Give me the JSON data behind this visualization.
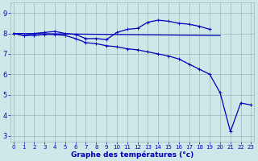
{
  "x_all": [
    0,
    1,
    2,
    3,
    4,
    5,
    6,
    7,
    8,
    9,
    10,
    11,
    12,
    13,
    14,
    15,
    16,
    17,
    18,
    19,
    20,
    21,
    22,
    23
  ],
  "line_upper": [
    8.0,
    7.9,
    8.0,
    8.05,
    8.1,
    8.0,
    7.95,
    7.75,
    7.75,
    7.7,
    8.05,
    8.2,
    8.25,
    8.55,
    8.65,
    8.6,
    8.5,
    8.45,
    8.35,
    8.2,
    null,
    null,
    null,
    null
  ],
  "line_flat": [
    8.0,
    null,
    null,
    null,
    null,
    null,
    null,
    null,
    null,
    null,
    null,
    null,
    null,
    null,
    null,
    null,
    null,
    null,
    null,
    null,
    7.9,
    null,
    null,
    null
  ],
  "line_steep": [
    8.0,
    7.9,
    7.9,
    7.95,
    7.95,
    7.9,
    7.75,
    7.55,
    7.5,
    7.4,
    7.35,
    7.25,
    7.2,
    7.1,
    7.0,
    6.9,
    6.75,
    6.5,
    6.25,
    6.0,
    5.1,
    3.2,
    4.6,
    4.5
  ],
  "bg_color": "#cce8e8",
  "line_color": "#0000bb",
  "grid_color": "#99bbbb",
  "xlabel": "Graphe des températures (°c)",
  "ylabel_ticks": [
    3,
    4,
    5,
    6,
    7,
    8,
    9
  ],
  "ylim": [
    2.7,
    9.5
  ],
  "xlim": [
    -0.3,
    23.3
  ],
  "tick_fontsize_x": 5.0,
  "tick_fontsize_y": 6.0
}
